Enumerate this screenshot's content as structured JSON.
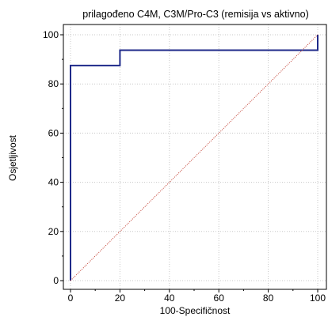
{
  "chart_data": {
    "type": "line",
    "title": "prilagođeno C4M, C3M/Pro-C3 (remisija vs aktivno)",
    "xlabel": "100-Specifičnost",
    "ylabel": "Osjetljivost",
    "xlim": [
      0,
      100
    ],
    "ylim": [
      0,
      100
    ],
    "xticks": [
      "0",
      "20",
      "40",
      "60",
      "80",
      "100"
    ],
    "yticks": [
      "0",
      "20",
      "40",
      "60",
      "80",
      "100"
    ],
    "grid": true,
    "series": [
      {
        "kind": "roc",
        "color": "#1f2a8a",
        "x": [
          0,
          0,
          20,
          20,
          100,
          100
        ],
        "y": [
          0,
          87.5,
          87.5,
          93.75,
          93.75,
          100
        ]
      },
      {
        "kind": "reference",
        "color": "#c0392b",
        "x": [
          0,
          100
        ],
        "y": [
          0,
          100
        ]
      }
    ]
  }
}
